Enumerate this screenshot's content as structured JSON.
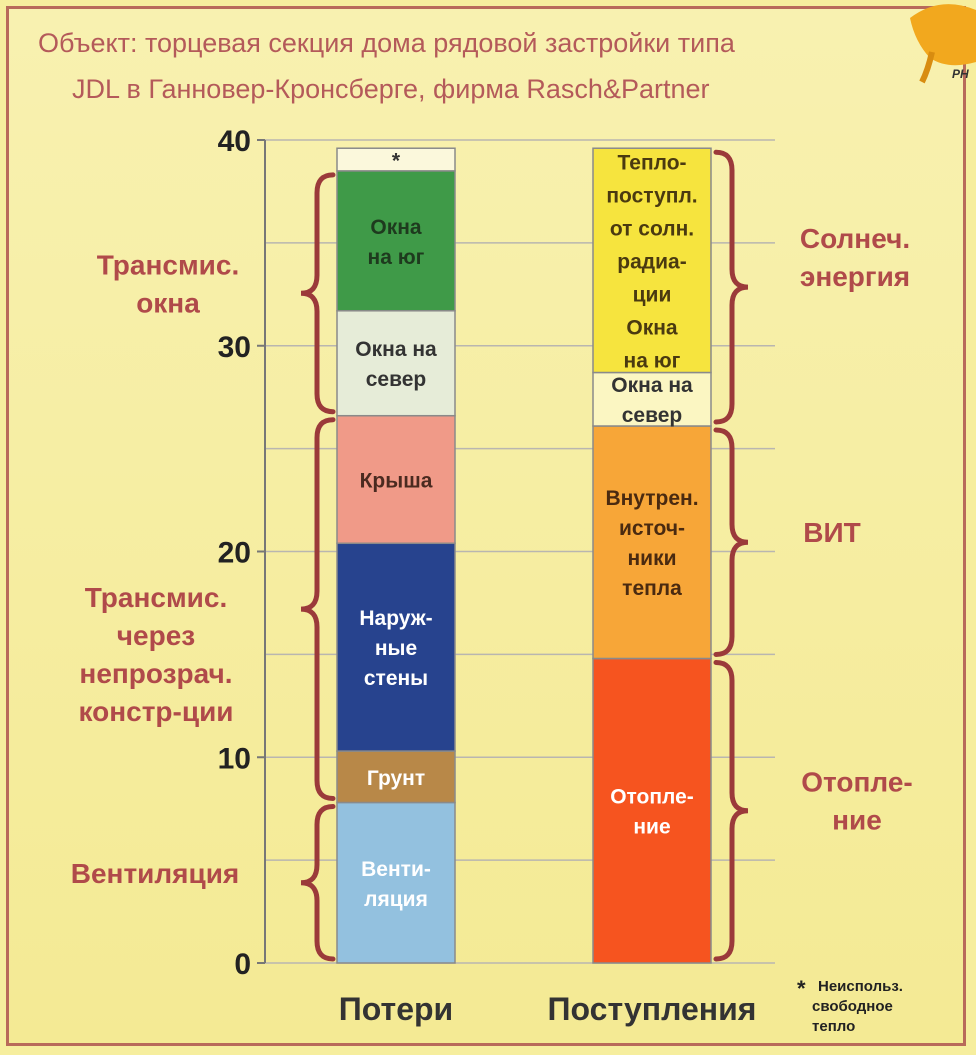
{
  "title_lines": [
    "Объект: торцевая секция дома рядовой застройки типа",
    "JDL в Ганновер-Кронсберге, фирма Rasch&Partner"
  ],
  "logo_text": "PH",
  "footnote": {
    "mark": "*",
    "lines": [
      "Неиспольз.",
      "свободное",
      "тепло"
    ]
  },
  "chart_data": {
    "type": "bar",
    "stacked": true,
    "ylim": [
      0,
      40
    ],
    "yticks": [
      0,
      10,
      20,
      30,
      40
    ],
    "grid": true,
    "categories": [
      "Потери",
      "Поступления"
    ],
    "stacks": [
      {
        "category": "Потери",
        "segments": [
          {
            "label": "Венти-\nляция",
            "from": 0,
            "to": 7.8,
            "color": "#93c1df",
            "text_color": "#ffffff"
          },
          {
            "label": "Грунт",
            "from": 7.8,
            "to": 10.3,
            "color": "#b88848",
            "text_color": "#ffffff"
          },
          {
            "label": "Наруж-\nные\nстены",
            "from": 10.3,
            "to": 20.4,
            "color": "#27438e",
            "text_color": "#ffffff"
          },
          {
            "label": "Крыша",
            "from": 20.4,
            "to": 26.6,
            "color": "#f09a88",
            "text_color": "#4a2a20"
          },
          {
            "label": "Окна на\nсевер",
            "from": 26.6,
            "to": 31.7,
            "color": "#e6ecd8",
            "text_color": "#333333"
          },
          {
            "label": "Окна\nна юг",
            "from": 31.7,
            "to": 38.5,
            "color": "#3f9a48",
            "text_color": "#1e3a1e"
          },
          {
            "label": "*",
            "from": 38.5,
            "to": 39.6,
            "color": "#fbf8dc",
            "text_color": "#333333"
          }
        ]
      },
      {
        "category": "Поступления",
        "segments": [
          {
            "label": "Отопле-\nние",
            "from": 0,
            "to": 14.8,
            "color": "#f6541f",
            "text_color": "#ffffff"
          },
          {
            "label": "Внутрен.\nисточ-\nники\nтепла",
            "from": 14.8,
            "to": 26.1,
            "color": "#f7a638",
            "text_color": "#4a2a10"
          },
          {
            "label": "Окна на\nсевер",
            "from": 26.1,
            "to": 28.7,
            "color": "#fbf6c2",
            "text_color": "#333333"
          },
          {
            "label": "Тепло-\nпоступл.\nот солн.\nрадиа-\nции\nОкна\nна юг",
            "from": 28.7,
            "to": 39.6,
            "color": "#f6e43e",
            "text_color": "#4a3a10"
          }
        ]
      }
    ],
    "annotations": {
      "left": [
        {
          "label": "Трансмис.\nокна",
          "from": 26.6,
          "to": 38.5
        },
        {
          "label": "Трансмис.\nчерез\nнепрозрач.\nконстр-ции",
          "from": 7.8,
          "to": 26.6
        },
        {
          "label": "Вентиляция",
          "from": 0,
          "to": 7.8
        }
      ],
      "right": [
        {
          "label": "Солнеч.\nэнергия",
          "from": 26.1,
          "to": 39.6
        },
        {
          "label": "ВИТ",
          "from": 14.8,
          "to": 26.1
        },
        {
          "label": "Отопле-\nние",
          "from": 0,
          "to": 14.8
        }
      ]
    }
  }
}
